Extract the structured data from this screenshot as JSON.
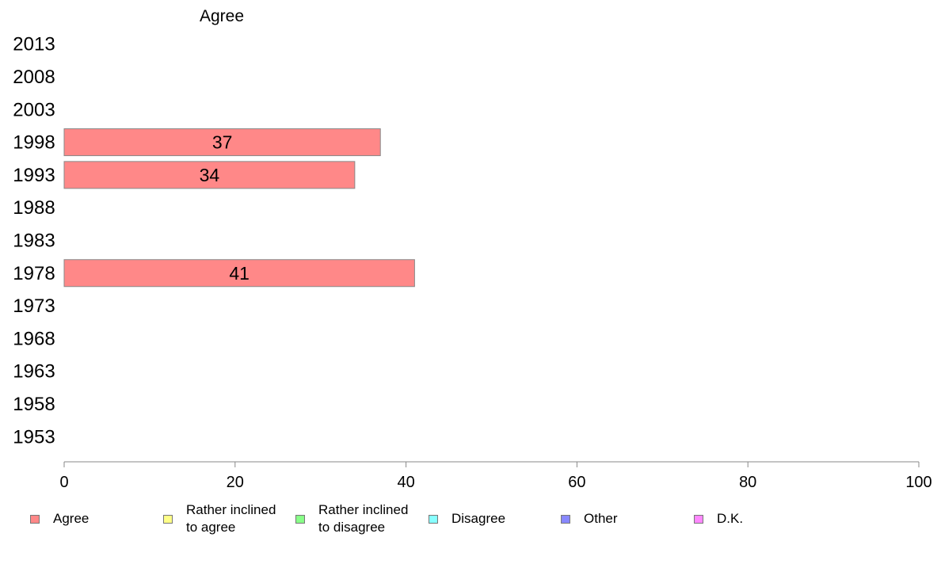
{
  "chart_data": {
    "type": "bar",
    "orientation": "horizontal",
    "title": "Agree",
    "categories": [
      "2013",
      "2008",
      "2003",
      "1998",
      "1993",
      "1988",
      "1983",
      "1978",
      "1973",
      "1968",
      "1963",
      "1958",
      "1953"
    ],
    "series": [
      {
        "name": "Agree",
        "color": "#ff8888",
        "values": [
          null,
          null,
          null,
          37,
          34,
          null,
          null,
          41,
          null,
          null,
          null,
          null,
          null
        ]
      }
    ],
    "xlim": [
      0,
      100
    ],
    "xticks": [
      0,
      20,
      40,
      60,
      80,
      100
    ],
    "xlabel": "",
    "ylabel": "",
    "grid": false,
    "legend_position": "bottom",
    "legend": [
      {
        "label": "Agree",
        "color": "#ff8888"
      },
      {
        "label": "Rather inclined\nto agree",
        "color": "#ffff88"
      },
      {
        "label": "Rather inclined\nto disagree",
        "color": "#88ff88"
      },
      {
        "label": "Disagree",
        "color": "#88ffff"
      },
      {
        "label": "Other",
        "color": "#8888ff"
      },
      {
        "label": "D.K.",
        "color": "#ff88ff"
      }
    ]
  }
}
